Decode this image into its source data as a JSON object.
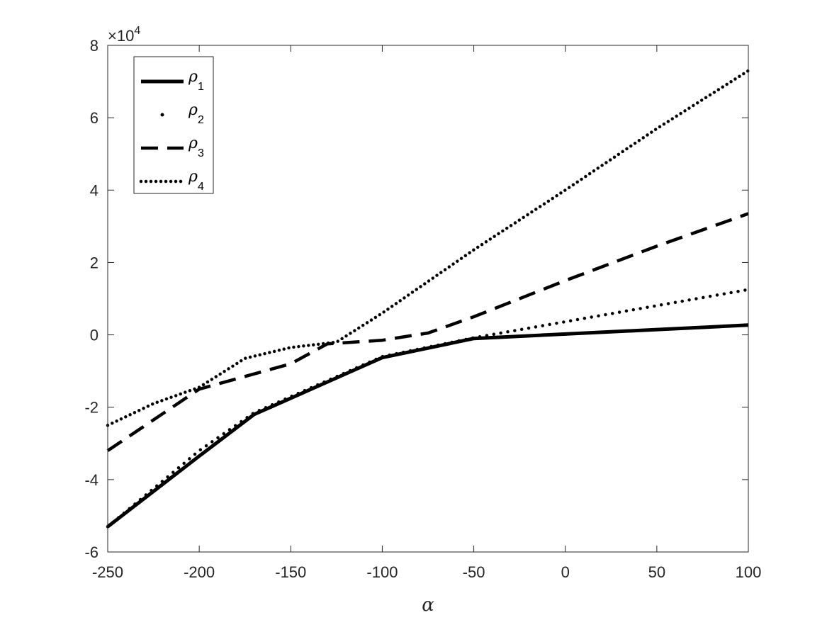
{
  "chart_data": {
    "type": "line",
    "title": "",
    "xlabel": "α",
    "ylabel": "",
    "y_exponent_label": "×10⁴",
    "xlim": [
      -250,
      100
    ],
    "ylim": [
      -60000,
      80000
    ],
    "xticks": [
      -250,
      -200,
      -150,
      -100,
      -50,
      0,
      50,
      100
    ],
    "yticks": [
      -60000,
      -40000,
      -20000,
      0,
      20000,
      40000,
      60000,
      80000
    ],
    "ytick_labels": [
      "-6",
      "-4",
      "-2",
      "0",
      "2",
      "4",
      "6",
      "8"
    ],
    "grid": false,
    "legend_position": "top-left",
    "series": [
      {
        "name": "ρ1",
        "name_base": "ρ",
        "name_sub": "1",
        "style": "solid",
        "color": "#000000",
        "x": [
          -250,
          -200,
          -170,
          -100,
          -50,
          100
        ],
        "y": [
          -53000,
          -33500,
          -22000,
          -6300,
          -1000,
          2700
        ]
      },
      {
        "name": "ρ2",
        "name_base": "ρ",
        "name_sub": "2",
        "style": "dotted-sparse",
        "color": "#000000",
        "x": [
          -250,
          -200,
          -170,
          -100,
          -50,
          100
        ],
        "y": [
          -53000,
          -32000,
          -21500,
          -6000,
          -800,
          12500
        ]
      },
      {
        "name": "ρ3",
        "name_base": "ρ",
        "name_sub": "3",
        "style": "dashed",
        "color": "#000000",
        "x": [
          -250,
          -200,
          -150,
          -130,
          -100,
          -75,
          -50,
          0,
          50,
          100
        ],
        "y": [
          -32000,
          -15000,
          -8000,
          -2500,
          -1500,
          500,
          5000,
          15000,
          24500,
          33500
        ]
      },
      {
        "name": "ρ4",
        "name_base": "ρ",
        "name_sub": "4",
        "style": "dotted-dense",
        "color": "#000000",
        "x": [
          -250,
          -225,
          -200,
          -175,
          -150,
          -125,
          -100,
          -50,
          0,
          50,
          100
        ],
        "y": [
          -25000,
          -19000,
          -14500,
          -6500,
          -3500,
          -2000,
          6000,
          23500,
          40000,
          57000,
          73000
        ]
      }
    ]
  }
}
